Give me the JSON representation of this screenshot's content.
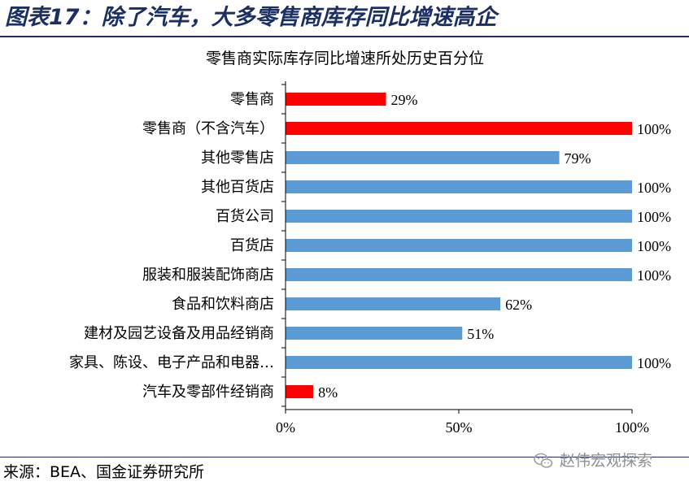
{
  "figure": {
    "title": "图表17：除了汽车，大多零售商库存同比增速高企",
    "source": "来源：BEA、国金证券研究所",
    "watermark": "赵伟宏观探索",
    "watermark_icon": "wechat-icon"
  },
  "chart_data": {
    "type": "bar",
    "orientation": "horizontal",
    "title": "零售商实际库存同比增速所处历史百分位",
    "xlabel": "",
    "ylabel": "",
    "xlim": [
      0,
      100
    ],
    "xticks": [
      0,
      50,
      100
    ],
    "tick_suffix": "%",
    "grid": false,
    "legend": "none",
    "categories": [
      "零售商",
      "零售商（不含汽车）",
      "其他零售店",
      "其他百货店",
      "百货公司",
      "百货店",
      "服装和服装配饰商店",
      "食品和饮料商店",
      "建材及园艺设备及用品经销商",
      "家具、陈设、电子产品和电器…",
      "汽车及零部件经销商"
    ],
    "values": [
      29,
      100,
      79,
      100,
      100,
      100,
      100,
      62,
      51,
      100,
      8
    ],
    "bar_colors": [
      "#ff0000",
      "#ff0000",
      "#5b9bd5",
      "#5b9bd5",
      "#5b9bd5",
      "#5b9bd5",
      "#5b9bd5",
      "#5b9bd5",
      "#5b9bd5",
      "#5b9bd5",
      "#ff0000"
    ],
    "data_labels": [
      "29%",
      "100%",
      "79%",
      "100%",
      "100%",
      "100%",
      "100%",
      "62%",
      "51%",
      "100%",
      "8%"
    ]
  }
}
